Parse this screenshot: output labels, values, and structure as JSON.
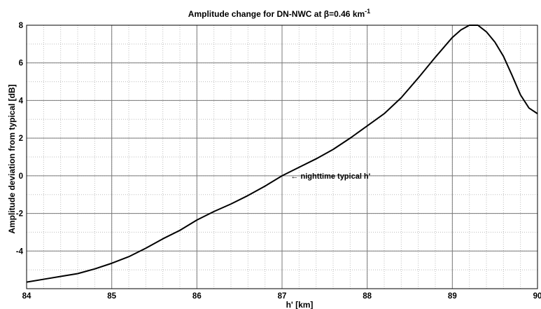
{
  "chart_data": {
    "type": "line",
    "title": "Amplitude change for DN-NWC at β=0.46 km",
    "title_superscript": "-1",
    "xlabel": "h' [km]",
    "ylabel": "Amplitude deviation from typical [dB]",
    "xlim": [
      84,
      90
    ],
    "ylim": [
      -6,
      8
    ],
    "xticks": [
      84,
      85,
      86,
      87,
      88,
      89,
      90
    ],
    "yticks": [
      -4,
      -2,
      0,
      2,
      4,
      6,
      8
    ],
    "grid": true,
    "minor_grid": true,
    "series": [
      {
        "color": "#000000",
        "x": [
          84.0,
          84.2,
          84.4,
          84.6,
          84.8,
          85.0,
          85.2,
          85.4,
          85.6,
          85.8,
          86.0,
          86.2,
          86.4,
          86.6,
          86.8,
          87.0,
          87.2,
          87.4,
          87.6,
          87.8,
          88.0,
          88.2,
          88.4,
          88.6,
          88.8,
          89.0,
          89.1,
          89.2,
          89.3,
          89.4,
          89.5,
          89.6,
          89.7,
          89.8,
          89.9,
          90.0
        ],
        "y": [
          -5.65,
          -5.5,
          -5.35,
          -5.2,
          -4.95,
          -4.65,
          -4.3,
          -3.85,
          -3.35,
          -2.9,
          -2.35,
          -1.9,
          -1.5,
          -1.05,
          -0.55,
          0.0,
          0.45,
          0.9,
          1.4,
          2.0,
          2.65,
          3.3,
          4.15,
          5.2,
          6.3,
          7.35,
          7.75,
          8.0,
          8.0,
          7.65,
          7.1,
          6.35,
          5.35,
          4.3,
          3.6,
          3.3
        ]
      }
    ],
    "annotations": [
      {
        "text": "← nighttime typical h'",
        "x": 87.02,
        "y": 0.0
      }
    ]
  }
}
